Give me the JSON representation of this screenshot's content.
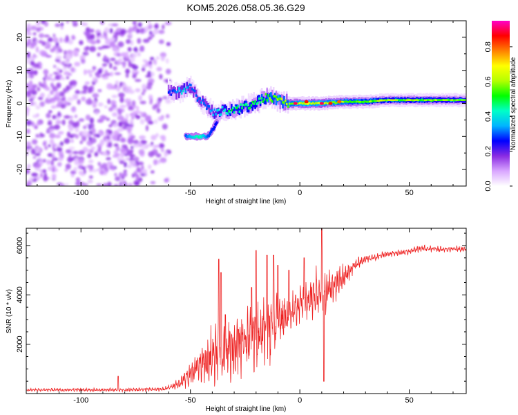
{
  "title": "KOM5.2026.058.05.36.G29",
  "chart_data": [
    {
      "type": "heatmap",
      "panel": "spectrogram",
      "xlabel": "Height of straight line (km)",
      "ylabel": "Frequency (Hz)",
      "xlim": [
        -125,
        76
      ],
      "ylim": [
        -25,
        25
      ],
      "xticks": [
        -100,
        -50,
        0,
        50
      ],
      "yticks": [
        -20,
        -10,
        0,
        10,
        20
      ],
      "colorbar": {
        "label": "Normalized spectral amplitude",
        "range": [
          0,
          0.95
        ],
        "ticks": [
          0.0,
          0.2,
          0.4,
          0.6,
          0.8
        ],
        "tick_labels": [
          "0.0",
          "0.2",
          "0.4",
          "0.6",
          "0.8"
        ],
        "colors": [
          "#ffffff",
          "#d9a6ff",
          "#8a2be2",
          "#0000ff",
          "#00b4ff",
          "#00ffc8",
          "#00ff00",
          "#b4ff00",
          "#ffff00",
          "#ff8000",
          "#ff0000",
          "#ff00c8"
        ]
      },
      "noise_region": {
        "x": [
          -125,
          -60
        ],
        "freq": [
          -25,
          25
        ],
        "amplitude": 0.15
      },
      "signal_track": [
        {
          "x": -60,
          "freq": 4,
          "amp": 0.25
        },
        {
          "x": -57,
          "freq": 3,
          "amp": 0.3
        },
        {
          "x": -53,
          "freq": 4,
          "amp": 0.35
        },
        {
          "x": -50,
          "freq": 5,
          "amp": 0.3
        },
        {
          "x": -47,
          "freq": 2,
          "amp": 0.3
        },
        {
          "x": -44,
          "freq": 0,
          "amp": 0.3
        },
        {
          "x": -41,
          "freq": -2,
          "amp": 0.3
        },
        {
          "x": -38,
          "freq": -3,
          "amp": 0.35
        },
        {
          "x": -35,
          "freq": -2,
          "amp": 0.4
        },
        {
          "x": -30,
          "freq": -2,
          "amp": 0.45
        },
        {
          "x": -25,
          "freq": -1,
          "amp": 0.45
        },
        {
          "x": -20,
          "freq": 0,
          "amp": 0.45
        },
        {
          "x": -15,
          "freq": 2,
          "amp": 0.5
        },
        {
          "x": -10,
          "freq": 1,
          "amp": 0.55
        },
        {
          "x": -5,
          "freq": 0,
          "amp": 0.55
        },
        {
          "x": 0,
          "freq": 0,
          "amp": 0.6
        },
        {
          "x": 10,
          "freq": 0,
          "amp": 0.6
        },
        {
          "x": 20,
          "freq": 0.5,
          "amp": 0.55
        },
        {
          "x": 30,
          "freq": 0.5,
          "amp": 0.5
        },
        {
          "x": 40,
          "freq": 1,
          "amp": 0.45
        },
        {
          "x": 50,
          "freq": 1,
          "amp": 0.45
        },
        {
          "x": 60,
          "freq": 1,
          "amp": 0.45
        },
        {
          "x": 76,
          "freq": 1,
          "amp": 0.4
        }
      ],
      "side_branch": [
        {
          "x": -52,
          "freq": -10,
          "amp": 0.3
        },
        {
          "x": -46,
          "freq": -10,
          "amp": 0.45
        },
        {
          "x": -42,
          "freq": -10,
          "amp": 0.3
        },
        {
          "x": -38,
          "freq": -6,
          "amp": 0.25
        }
      ],
      "hot_spots": [
        {
          "x": -2,
          "freq": 0,
          "amp": 0.9
        },
        {
          "x": 3,
          "freq": 0.5,
          "amp": 0.85
        },
        {
          "x": 10,
          "freq": 0,
          "amp": 0.9
        },
        {
          "x": 14,
          "freq": 0,
          "amp": 0.85
        },
        {
          "x": 18,
          "freq": 0.5,
          "amp": 0.8
        }
      ]
    },
    {
      "type": "line",
      "panel": "snr",
      "xlabel": "Height of straight line (km)",
      "ylabel": "SNR (10 * v/v)",
      "xlim": [
        -125,
        76
      ],
      "ylim": [
        0,
        6700
      ],
      "xticks": [
        -100,
        -50,
        0,
        50
      ],
      "yticks": [
        2000,
        4000,
        6000
      ],
      "color": "#ee2222",
      "envelope": [
        {
          "x": -125,
          "mean": 150,
          "amp": 60
        },
        {
          "x": -80,
          "mean": 150,
          "amp": 70
        },
        {
          "x": -62,
          "mean": 180,
          "amp": 80
        },
        {
          "x": -55,
          "mean": 400,
          "amp": 200
        },
        {
          "x": -50,
          "mean": 800,
          "amp": 500
        },
        {
          "x": -45,
          "mean": 1200,
          "amp": 800
        },
        {
          "x": -40,
          "mean": 1600,
          "amp": 1200
        },
        {
          "x": -35,
          "mean": 1800,
          "amp": 1400
        },
        {
          "x": -30,
          "mean": 1900,
          "amp": 1200
        },
        {
          "x": -20,
          "mean": 2400,
          "amp": 1400
        },
        {
          "x": -15,
          "mean": 2600,
          "amp": 1500
        },
        {
          "x": -10,
          "mean": 2800,
          "amp": 1300
        },
        {
          "x": -5,
          "mean": 3100,
          "amp": 900
        },
        {
          "x": 0,
          "mean": 3600,
          "amp": 700
        },
        {
          "x": 5,
          "mean": 3900,
          "amp": 900
        },
        {
          "x": 10,
          "mean": 4100,
          "amp": 1200
        },
        {
          "x": 15,
          "mean": 4300,
          "amp": 700
        },
        {
          "x": 20,
          "mean": 4700,
          "amp": 500
        },
        {
          "x": 25,
          "mean": 5200,
          "amp": 250
        },
        {
          "x": 30,
          "mean": 5450,
          "amp": 150
        },
        {
          "x": 40,
          "mean": 5650,
          "amp": 120
        },
        {
          "x": 50,
          "mean": 5750,
          "amp": 120
        },
        {
          "x": 55,
          "mean": 5900,
          "amp": 150
        },
        {
          "x": 60,
          "mean": 5850,
          "amp": 120
        },
        {
          "x": 76,
          "mean": 5850,
          "amp": 130
        }
      ],
      "spikes": [
        {
          "x": -83,
          "value": 700
        },
        {
          "x": -37,
          "value": 5450
        },
        {
          "x": -36,
          "value": 4900
        },
        {
          "x": -34,
          "value": 3200
        },
        {
          "x": -28,
          "value": 2600
        },
        {
          "x": -25,
          "value": 2200
        },
        {
          "x": -22,
          "value": 4300
        },
        {
          "x": -20,
          "value": 5800
        },
        {
          "x": -15,
          "value": 5600
        },
        {
          "x": -12,
          "value": 5600
        },
        {
          "x": -10,
          "value": 5200
        },
        {
          "x": -5,
          "value": 5000
        },
        {
          "x": 2,
          "value": 5500
        },
        {
          "x": 10,
          "value": 6700
        },
        {
          "x": 11,
          "value": 500
        }
      ]
    }
  ]
}
